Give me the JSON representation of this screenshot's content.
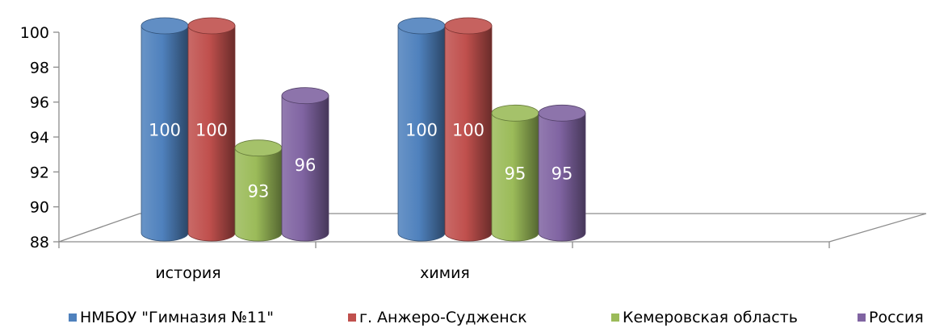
{
  "chart_data": {
    "type": "bar",
    "style": "3d-cylinder",
    "title": "",
    "xlabel": "",
    "ylabel": "",
    "categories": [
      "история",
      "химия",
      ""
    ],
    "series": [
      {
        "name": "НМБОУ \"Гимназия №11\"",
        "values": [
          100,
          100,
          null
        ],
        "color": "#4f81bd"
      },
      {
        "name": "г. Анжеро-Судженск",
        "values": [
          100,
          100,
          null
        ],
        "color": "#c0504d"
      },
      {
        "name": "Кемеровская область",
        "values": [
          93,
          95,
          null
        ],
        "color": "#9bbb59"
      },
      {
        "name": "Россия",
        "values": [
          96,
          95,
          null
        ],
        "color": "#8064a2"
      }
    ],
    "ylim": [
      88,
      100
    ],
    "yticks": [
      88,
      90,
      92,
      94,
      96,
      98,
      100
    ],
    "grid": false,
    "legend": "bottom"
  }
}
